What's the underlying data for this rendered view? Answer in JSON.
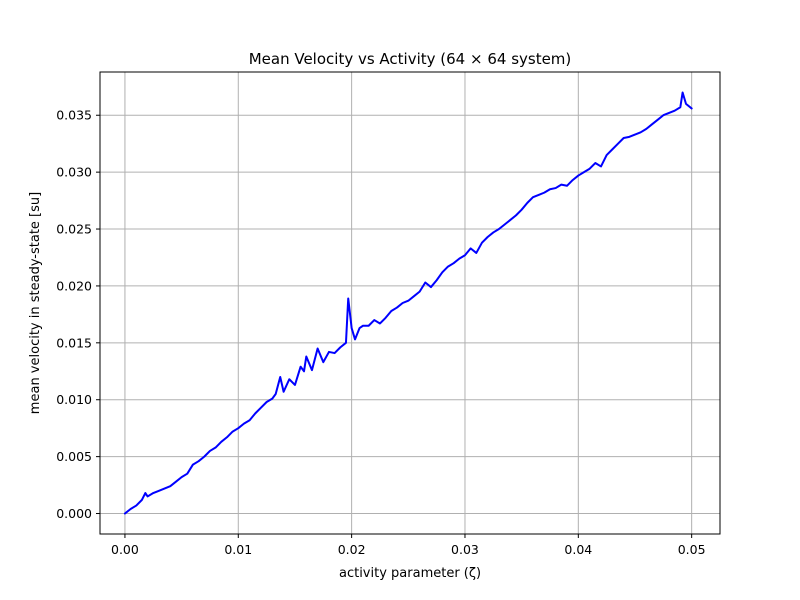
{
  "chart_data": {
    "type": "line",
    "title": "Mean Velocity vs Activity (64 × 64 system)",
    "xlabel": "activity parameter (ζ)",
    "ylabel": "mean velocity in steady-state [su]",
    "xlim": [
      -0.0022,
      0.0525
    ],
    "ylim": [
      -0.0018,
      0.0388
    ],
    "grid": true,
    "x_ticks": [
      0.0,
      0.01,
      0.02,
      0.03,
      0.04,
      0.05
    ],
    "x_tick_labels": [
      "0.00",
      "0.01",
      "0.02",
      "0.03",
      "0.04",
      "0.05"
    ],
    "y_ticks": [
      0.0,
      0.005,
      0.01,
      0.015,
      0.02,
      0.025,
      0.03,
      0.035
    ],
    "y_tick_labels": [
      "0.000",
      "0.005",
      "0.010",
      "0.015",
      "0.020",
      "0.025",
      "0.030",
      "0.035"
    ],
    "series": [
      {
        "color": "#0000ff",
        "points": [
          [
            0.0,
            0.0
          ],
          [
            0.0005,
            0.0004
          ],
          [
            0.001,
            0.0007
          ],
          [
            0.0015,
            0.0012
          ],
          [
            0.0018,
            0.0018
          ],
          [
            0.002,
            0.0015
          ],
          [
            0.0025,
            0.0018
          ],
          [
            0.003,
            0.002
          ],
          [
            0.004,
            0.0024
          ],
          [
            0.0045,
            0.0028
          ],
          [
            0.005,
            0.0032
          ],
          [
            0.0055,
            0.0035
          ],
          [
            0.006,
            0.0043
          ],
          [
            0.0065,
            0.0046
          ],
          [
            0.007,
            0.005
          ],
          [
            0.0075,
            0.0055
          ],
          [
            0.008,
            0.0058
          ],
          [
            0.0085,
            0.0063
          ],
          [
            0.009,
            0.0067
          ],
          [
            0.0095,
            0.0072
          ],
          [
            0.01,
            0.0075
          ],
          [
            0.0105,
            0.0079
          ],
          [
            0.011,
            0.0082
          ],
          [
            0.0115,
            0.0088
          ],
          [
            0.012,
            0.0093
          ],
          [
            0.0125,
            0.0098
          ],
          [
            0.013,
            0.0101
          ],
          [
            0.0133,
            0.0105
          ],
          [
            0.0137,
            0.012
          ],
          [
            0.014,
            0.0107
          ],
          [
            0.0145,
            0.0118
          ],
          [
            0.015,
            0.0113
          ],
          [
            0.0155,
            0.0129
          ],
          [
            0.0158,
            0.0125
          ],
          [
            0.016,
            0.0138
          ],
          [
            0.0165,
            0.0126
          ],
          [
            0.017,
            0.0145
          ],
          [
            0.0175,
            0.0133
          ],
          [
            0.018,
            0.0142
          ],
          [
            0.0185,
            0.0141
          ],
          [
            0.019,
            0.0146
          ],
          [
            0.0195,
            0.015
          ],
          [
            0.0197,
            0.0189
          ],
          [
            0.02,
            0.0163
          ],
          [
            0.0203,
            0.0153
          ],
          [
            0.0207,
            0.0163
          ],
          [
            0.021,
            0.0165
          ],
          [
            0.0215,
            0.0165
          ],
          [
            0.022,
            0.017
          ],
          [
            0.0225,
            0.0167
          ],
          [
            0.023,
            0.0172
          ],
          [
            0.0235,
            0.0178
          ],
          [
            0.024,
            0.0181
          ],
          [
            0.0245,
            0.0185
          ],
          [
            0.025,
            0.0187
          ],
          [
            0.0255,
            0.0191
          ],
          [
            0.026,
            0.0195
          ],
          [
            0.0265,
            0.0203
          ],
          [
            0.027,
            0.0199
          ],
          [
            0.0275,
            0.0205
          ],
          [
            0.028,
            0.0212
          ],
          [
            0.0285,
            0.0217
          ],
          [
            0.029,
            0.022
          ],
          [
            0.0295,
            0.0224
          ],
          [
            0.03,
            0.0227
          ],
          [
            0.0305,
            0.0233
          ],
          [
            0.031,
            0.0229
          ],
          [
            0.0315,
            0.0238
          ],
          [
            0.032,
            0.0243
          ],
          [
            0.0325,
            0.0247
          ],
          [
            0.033,
            0.025
          ],
          [
            0.0335,
            0.0254
          ],
          [
            0.034,
            0.0258
          ],
          [
            0.0345,
            0.0262
          ],
          [
            0.035,
            0.0267
          ],
          [
            0.0355,
            0.0273
          ],
          [
            0.036,
            0.0278
          ],
          [
            0.0365,
            0.028
          ],
          [
            0.037,
            0.0282
          ],
          [
            0.0375,
            0.0285
          ],
          [
            0.038,
            0.0286
          ],
          [
            0.0385,
            0.0289
          ],
          [
            0.039,
            0.0288
          ],
          [
            0.0395,
            0.0293
          ],
          [
            0.04,
            0.0297
          ],
          [
            0.0405,
            0.03
          ],
          [
            0.041,
            0.0303
          ],
          [
            0.0415,
            0.0308
          ],
          [
            0.042,
            0.0305
          ],
          [
            0.0425,
            0.0315
          ],
          [
            0.043,
            0.032
          ],
          [
            0.0435,
            0.0325
          ],
          [
            0.044,
            0.033
          ],
          [
            0.0445,
            0.0331
          ],
          [
            0.045,
            0.0333
          ],
          [
            0.0455,
            0.0335
          ],
          [
            0.046,
            0.0338
          ],
          [
            0.0465,
            0.0342
          ],
          [
            0.047,
            0.0346
          ],
          [
            0.0475,
            0.035
          ],
          [
            0.048,
            0.0352
          ],
          [
            0.0485,
            0.0354
          ],
          [
            0.049,
            0.0357
          ],
          [
            0.0492,
            0.037
          ],
          [
            0.0495,
            0.036
          ],
          [
            0.05,
            0.0356
          ]
        ]
      }
    ]
  }
}
